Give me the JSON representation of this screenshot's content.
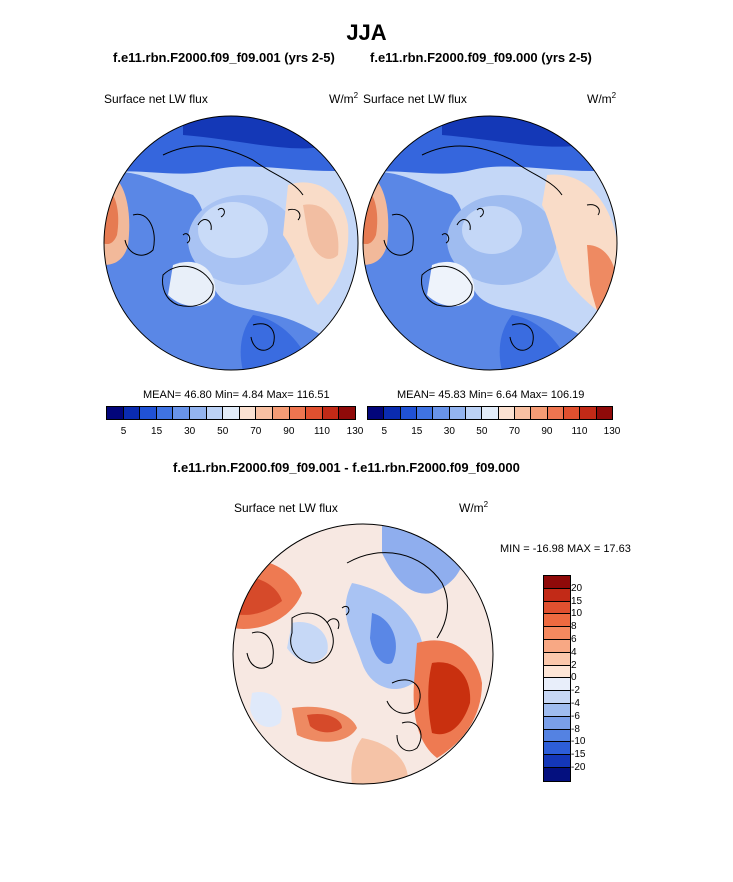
{
  "title": "JJA",
  "panel_left": {
    "case_label": "f.e11.rbn.F2000.f09_f09.001 (yrs 2-5)",
    "variable": "Surface net LW flux",
    "units_base": "W/m",
    "units_exp": "2",
    "stats": "MEAN=  46.80  Min=   4.84  Max= 116.51"
  },
  "panel_right": {
    "case_label": "f.e11.rbn.F2000.f09_f09.000 (yrs 2-5)",
    "variable": "Surface net LW flux",
    "units_base": "W/m",
    "units_exp": "2",
    "stats": "MEAN=  45.83  Min=   6.64  Max= 106.19"
  },
  "panel_diff": {
    "case_label": "f.e11.rbn.F2000.f09_f09.001 - f.e11.rbn.F2000.f09_f09.000",
    "variable": "Surface net LW flux",
    "units_base": "W/m",
    "units_exp": "2",
    "minmax": "MIN = -16.98 MAX =  17.63"
  },
  "chart_data": [
    {
      "type": "heatmap",
      "projection": "north-polar-stereographic",
      "title": "f.e11.rbn.F2000.f09_f09.001 (yrs 2-5)",
      "variable": "Surface net LW flux",
      "units": "W/m2",
      "mean": 46.8,
      "min": 4.84,
      "max": 116.51,
      "colorbar_orientation": "horizontal",
      "colorbar_ticks": [
        "5",
        "15",
        "30",
        "50",
        "70",
        "90",
        "110",
        "130"
      ],
      "colorbar_colors": [
        "#02057a",
        "#0a2bb0",
        "#2052d6",
        "#3f73e3",
        "#6994ea",
        "#93b4f0",
        "#bcd2f6",
        "#e2ecf9",
        "#fbe1d1",
        "#f8c0a2",
        "#f59c75",
        "#ee7550",
        "#e0502f",
        "#c22a17",
        "#8f0a09"
      ]
    },
    {
      "type": "heatmap",
      "projection": "north-polar-stereographic",
      "title": "f.e11.rbn.F2000.f09_f09.000 (yrs 2-5)",
      "variable": "Surface net LW flux",
      "units": "W/m2",
      "mean": 45.83,
      "min": 6.64,
      "max": 106.19,
      "colorbar_orientation": "horizontal",
      "colorbar_ticks": [
        "5",
        "15",
        "30",
        "50",
        "70",
        "90",
        "110",
        "130"
      ],
      "colorbar_colors": [
        "#02057a",
        "#0a2bb0",
        "#2052d6",
        "#3f73e3",
        "#6994ea",
        "#93b4f0",
        "#bcd2f6",
        "#e2ecf9",
        "#fbe1d1",
        "#f8c0a2",
        "#f59c75",
        "#ee7550",
        "#e0502f",
        "#c22a17",
        "#8f0a09"
      ]
    },
    {
      "type": "heatmap",
      "projection": "north-polar-stereographic",
      "title": "f.e11.rbn.F2000.f09_f09.001 - f.e11.rbn.F2000.f09_f09.000",
      "variable": "Surface net LW flux",
      "units": "W/m2",
      "min": -16.98,
      "max": 17.63,
      "colorbar_orientation": "vertical",
      "colorbar_ticks": [
        "20",
        "15",
        "10",
        "8",
        "6",
        "4",
        "2",
        "0",
        "-2",
        "-4",
        "-6",
        "-8",
        "-10",
        "-15",
        "-20"
      ],
      "colorbar_colors": [
        "#8f0a09",
        "#c22a17",
        "#e0502f",
        "#ee6a40",
        "#f5895f",
        "#f8a884",
        "#fbc7ab",
        "#fde5d6",
        "#e8eefa",
        "#c7d7f5",
        "#9fbcef",
        "#7a9fe9",
        "#5482e2",
        "#2d5ed8",
        "#1437b8",
        "#04107f"
      ]
    }
  ]
}
